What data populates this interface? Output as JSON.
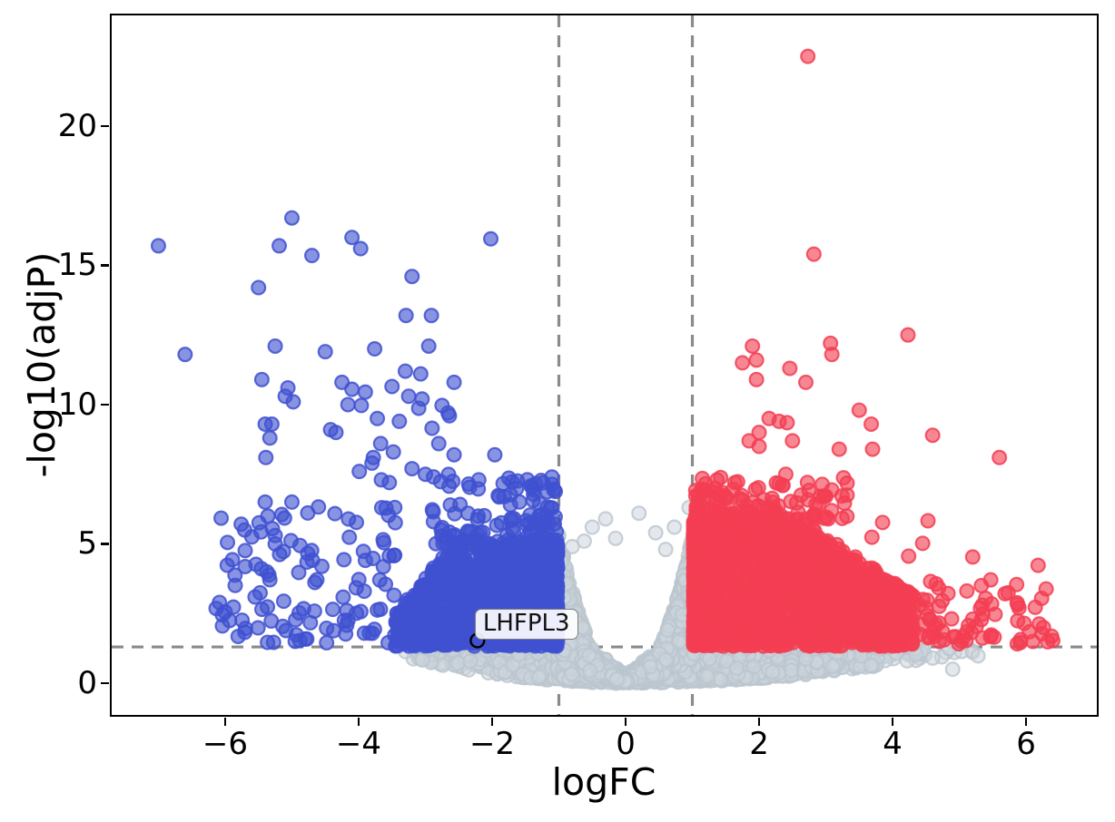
{
  "chart_data": {
    "type": "scatter",
    "subtype": "volcano",
    "title": "",
    "xlabel": "logFC",
    "ylabel": "-log10(adjP)",
    "xlim": [
      -7.7,
      7.06
    ],
    "ylim": [
      -1.14,
      23.97
    ],
    "x_ticks": {
      "values": [
        -6,
        -4,
        -2,
        0,
        2,
        4,
        6
      ],
      "labels": [
        "−6",
        "−4",
        "−2",
        "0",
        "2",
        "4",
        "6"
      ]
    },
    "y_ticks": {
      "values": [
        0,
        5,
        10,
        15,
        20
      ],
      "labels": [
        "0",
        "5",
        "10",
        "15",
        "20"
      ]
    },
    "grid": false,
    "legend": "none",
    "background": "#ffffff",
    "thresholds": {
      "logfc_lines_x": [
        -1,
        1
      ],
      "pvalue_line_y": 1.301,
      "line_color": "#8a8a8a",
      "line_style": "dashed",
      "line_width": 3.2,
      "dash_pattern": [
        13,
        9
      ]
    },
    "annotation": {
      "label": "LHFPL3",
      "x": -2.22,
      "y": 1.53,
      "ring_color": "#000000"
    },
    "marker": {
      "radius": 7.4,
      "stroke_width": 2.2
    },
    "seed": 1337,
    "series": [
      {
        "name": "not_significant",
        "color": "#cdd5dc",
        "fill": "rgba(205,213,220,0.55)",
        "stroke": "rgba(186,197,206,0.8)",
        "components": [
          {
            "kind": "band",
            "n": 1700,
            "x_mean": 0.55,
            "x_sd": 1.6,
            "x_min": -3.3,
            "x_max": 5.4,
            "y_top": 1.28,
            "y_pow": 1.1,
            "bottom_c_neg": 0.085,
            "bottom_c_pos": 0.042,
            "notch_half_width": 0.62,
            "notch_base": 0.3,
            "notch_slope": 1.9
          },
          {
            "kind": "funnel",
            "n": 1500,
            "x_half": 1.03,
            "peak": 5.3,
            "exp": 2.1,
            "y_min": 0.12,
            "y_pow": 0.95
          },
          {
            "kind": "wedge",
            "n": 300,
            "x_sd": 0.3,
            "x_clip": 0.92,
            "slope": 2.0,
            "y_base": 0.05
          },
          {
            "kind": "points",
            "pts": [
              [
                -0.62,
                5.1
              ],
              [
                0.73,
                5.6
              ],
              [
                -0.3,
                5.9
              ],
              [
                0.2,
                6.1
              ],
              [
                0.95,
                6.3
              ],
              [
                1.05,
                5.8
              ],
              [
                -0.15,
                5.2
              ],
              [
                0.45,
                5.4
              ],
              [
                -0.8,
                4.9
              ],
              [
                0.6,
                4.8
              ],
              [
                1.1,
                6.1
              ],
              [
                -0.5,
                5.6
              ],
              [
                1.02,
                1.05
              ],
              [
                2.2,
                0.4
              ],
              [
                3.1,
                0.6
              ],
              [
                4.6,
                0.9
              ],
              [
                5.28,
                0.98
              ],
              [
                4.9,
                0.5
              ]
            ]
          }
        ]
      },
      {
        "name": "down_regulated",
        "color": "#3f51d1",
        "fill": "rgba(63,81,209,0.62)",
        "stroke": "rgba(63,81,209,0.85)",
        "components": [
          {
            "kind": "block",
            "n": 1250,
            "side": -1,
            "x_start": 1.02,
            "x_span": 2.43,
            "x_pow": 1.7,
            "y_base": 1.33,
            "top_flat": 5.0,
            "top_until": 2.6,
            "top_slope": 3.0,
            "top_min": 1.9,
            "y_pow": 1.15
          },
          {
            "kind": "spray",
            "n": 130,
            "side": -1,
            "x_start": 1.03,
            "x_span": 1.9,
            "x_pow": 1.5,
            "y_base": 5.0,
            "y_span": 2.5,
            "y_pow": 2.0
          },
          {
            "kind": "spray",
            "n": 110,
            "side": -1,
            "x_start": 3.45,
            "x_span": 2.7,
            "x_pow": 1.4,
            "y_base": 1.45,
            "y_span": 4.9,
            "y_pow": 1.2
          },
          {
            "kind": "points",
            "pts": [
              [
                -7.0,
                15.7
              ],
              [
                -6.6,
                11.8
              ],
              [
                -5.5,
                14.2
              ],
              [
                -5.0,
                16.7
              ],
              [
                -5.19,
                15.7
              ],
              [
                -4.7,
                15.35
              ],
              [
                -4.1,
                16.0
              ],
              [
                -3.97,
                15.6
              ],
              [
                -2.02,
                15.95
              ],
              [
                -3.2,
                14.6
              ],
              [
                -3.29,
                13.2
              ],
              [
                -2.91,
                13.2
              ],
              [
                -5.25,
                12.1
              ],
              [
                -4.5,
                11.9
              ],
              [
                -3.76,
                12.0
              ],
              [
                -2.95,
                12.1
              ],
              [
                -5.45,
                10.9
              ],
              [
                -5.06,
                10.6
              ],
              [
                -5.1,
                10.3
              ],
              [
                -4.98,
                10.1
              ],
              [
                -4.25,
                10.8
              ],
              [
                -4.1,
                10.55
              ],
              [
                -3.9,
                10.45
              ],
              [
                -3.5,
                10.65
              ],
              [
                -4.16,
                10.0
              ],
              [
                -3.96,
                9.97
              ],
              [
                -3.3,
                11.2
              ],
              [
                -3.07,
                11.1
              ],
              [
                -2.57,
                10.8
              ],
              [
                -3.25,
                10.3
              ],
              [
                -3.05,
                10.2
              ],
              [
                -3.1,
                9.87
              ],
              [
                -2.66,
                9.7
              ],
              [
                -2.75,
                9.97
              ],
              [
                -2.64,
                9.6
              ],
              [
                -3.72,
                9.5
              ],
              [
                -3.39,
                9.4
              ],
              [
                -4.42,
                9.1
              ],
              [
                -4.34,
                9.0
              ],
              [
                -2.9,
                9.15
              ],
              [
                -5.4,
                9.3
              ],
              [
                -5.3,
                9.3
              ],
              [
                -5.33,
                8.8
              ],
              [
                -5.39,
                8.1
              ],
              [
                -3.67,
                8.6
              ],
              [
                -3.48,
                8.3
              ],
              [
                -3.78,
                8.1
              ],
              [
                -3.8,
                7.9
              ],
              [
                -3.99,
                7.6
              ],
              [
                -3.66,
                7.3
              ],
              [
                -3.54,
                7.2
              ],
              [
                -3.2,
                7.7
              ],
              [
                -3.0,
                7.5
              ],
              [
                -2.8,
                8.6
              ],
              [
                -2.57,
                8.2
              ],
              [
                -1.96,
                8.2
              ],
              [
                -1.62,
                7.26
              ],
              [
                -1.35,
                7.16
              ],
              [
                -2.2,
                7.3
              ],
              [
                -5.4,
                6.5
              ],
              [
                -5.0,
                6.5
              ],
              [
                -5.36,
                6.0
              ],
              [
                -5.25,
                5.3
              ],
              [
                -5.6,
                5.25
              ],
              [
                -5.25,
                5.0
              ],
              [
                -5.7,
                4.76
              ],
              [
                -1.1,
                6.29
              ],
              [
                -1.3,
                5.99
              ]
            ]
          }
        ]
      },
      {
        "name": "up_regulated",
        "color": "#f33e52",
        "fill": "rgba(243,62,82,0.62)",
        "stroke": "rgba(243,62,82,0.85)",
        "components": [
          {
            "kind": "block",
            "n": 2300,
            "side": 1,
            "x_start": 1.02,
            "x_span": 3.3,
            "x_pow": 1.9,
            "y_base": 1.33,
            "top_flat": 5.9,
            "top_until": 2.6,
            "top_slope": 1.6,
            "top_min": 2.2,
            "y_pow": 1.1
          },
          {
            "kind": "spray",
            "n": 130,
            "side": 1,
            "x_start": 1.05,
            "x_span": 2.3,
            "x_pow": 1.6,
            "y_base": 5.9,
            "y_span": 1.5,
            "y_pow": 1.8
          },
          {
            "kind": "spray",
            "n": 60,
            "side": 1,
            "x_start": 4.3,
            "x_span": 2.1,
            "x_pow": 1.2,
            "y_base": 1.4,
            "y_span": 2.2,
            "y_pow": 1.4
          },
          {
            "kind": "points",
            "pts": [
              [
                2.73,
                22.5
              ],
              [
                2.82,
                15.4
              ],
              [
                4.23,
                12.5
              ],
              [
                1.9,
                12.1
              ],
              [
                3.07,
                12.2
              ],
              [
                3.09,
                11.8
              ],
              [
                1.75,
                11.5
              ],
              [
                1.96,
                11.6
              ],
              [
                1.96,
                10.9
              ],
              [
                2.46,
                11.3
              ],
              [
                2.7,
                10.8
              ],
              [
                3.5,
                9.8
              ],
              [
                3.68,
                9.3
              ],
              [
                2.15,
                9.5
              ],
              [
                2.3,
                9.4
              ],
              [
                2.42,
                9.35
              ],
              [
                2.0,
                9.0
              ],
              [
                1.85,
                8.7
              ],
              [
                2.0,
                8.5
              ],
              [
                2.5,
                8.7
              ],
              [
                4.6,
                8.9
              ],
              [
                3.2,
                8.4
              ],
              [
                3.7,
                8.4
              ],
              [
                5.6,
                8.1
              ],
              [
                2.4,
                7.5
              ],
              [
                2.35,
                7.1
              ],
              [
                4.53,
                5.83
              ],
              [
                3.85,
                5.77
              ],
              [
                3.69,
                5.24
              ],
              [
                4.45,
                5.02
              ],
              [
                4.24,
                4.56
              ],
              [
                5.2,
                4.53
              ],
              [
                6.18,
                4.23
              ],
              [
                5.47,
                3.71
              ],
              [
                4.57,
                3.65
              ],
              [
                4.69,
                3.42
              ],
              [
                4.83,
                3.22
              ],
              [
                4.4,
                2.8
              ],
              [
                4.5,
                2.7
              ],
              [
                4.65,
                2.1
              ],
              [
                4.91,
                1.66
              ],
              [
                5.06,
                1.66
              ],
              [
                5.97,
                2.15
              ],
              [
                6.26,
                2.0
              ],
              [
                6.1,
                1.5
              ],
              [
                6.4,
                1.53
              ],
              [
                5.2,
                2.3
              ],
              [
                5.33,
                2.28
              ]
            ]
          }
        ]
      }
    ]
  }
}
